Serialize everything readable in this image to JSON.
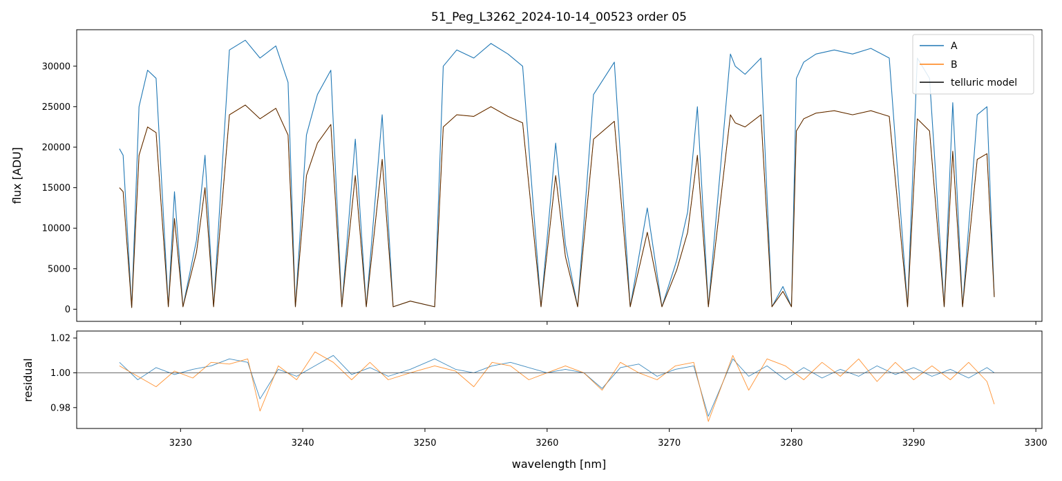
{
  "chart_data": [
    {
      "type": "line",
      "title": "51_Peg_L3262_2024-10-14_00523  order 05",
      "xlabel": "",
      "ylabel": "flux [ADU]",
      "xlim": [
        3221.5,
        3300.5
      ],
      "ylim": [
        -1500,
        34500
      ],
      "xticks": [
        3230,
        3240,
        3250,
        3260,
        3270,
        3280,
        3290,
        3300
      ],
      "yticks": [
        0,
        5000,
        10000,
        15000,
        20000,
        25000,
        30000
      ],
      "xtick_labels_visible": false,
      "grid": false,
      "legend": {
        "placement": "top-right",
        "entries": [
          "A",
          "B",
          "telluric model"
        ]
      },
      "x": [
        3225.0,
        3225.3,
        3226.0,
        3226.6,
        3227.3,
        3228.0,
        3229.0,
        3229.5,
        3230.2,
        3231.3,
        3232.0,
        3232.7,
        3234.0,
        3235.3,
        3236.5,
        3237.8,
        3238.8,
        3239.4,
        3240.3,
        3241.2,
        3242.3,
        3243.2,
        3244.3,
        3245.2,
        3246.5,
        3247.4,
        3248.8,
        3250.8,
        3251.5,
        3252.6,
        3254.0,
        3255.4,
        3256.8,
        3258.0,
        3259.5,
        3260.7,
        3261.5,
        3262.5,
        3263.8,
        3265.5,
        3266.8,
        3268.2,
        3269.4,
        3270.6,
        3271.5,
        3272.3,
        3273.2,
        3275.0,
        3275.4,
        3276.2,
        3277.5,
        3278.4,
        3279.3,
        3280.0,
        3280.4,
        3281.0,
        3282.0,
        3283.5,
        3285.0,
        3286.5,
        3288.0,
        3289.5,
        3290.3,
        3291.3,
        3292.5,
        3293.2,
        3294.0,
        3295.2,
        3296.0,
        3296.6
      ],
      "series": [
        {
          "name": "A",
          "color": "#1f77b4",
          "y": [
            19800,
            19000,
            200,
            25000,
            29500,
            28500,
            300,
            14500,
            300,
            8500,
            19000,
            300,
            32000,
            33200,
            31000,
            32500,
            28000,
            300,
            21500,
            26500,
            29500,
            300,
            21000,
            300,
            24000,
            300,
            1000,
            300,
            30000,
            32000,
            31000,
            32800,
            31500,
            30000,
            300,
            20500,
            8000,
            300,
            26500,
            30500,
            300,
            12500,
            300,
            6000,
            12000,
            25000,
            300,
            31500,
            30000,
            29000,
            31000,
            300,
            2800,
            300,
            28500,
            30500,
            31500,
            32000,
            31500,
            32200,
            31000,
            300,
            31000,
            28500,
            300,
            25500,
            300,
            24000,
            25000,
            1500
          ]
        },
        {
          "name": "B",
          "color": "#ff7f0e",
          "y": [
            15000,
            14500,
            200,
            19000,
            22500,
            21800,
            300,
            11200,
            300,
            7000,
            15000,
            300,
            24000,
            25200,
            23500,
            24800,
            21500,
            300,
            16500,
            20500,
            22800,
            300,
            16500,
            300,
            18500,
            300,
            1000,
            300,
            22500,
            24000,
            23800,
            25000,
            23800,
            23000,
            300,
            16500,
            6500,
            300,
            21000,
            23200,
            300,
            9500,
            300,
            4800,
            9500,
            19000,
            300,
            24000,
            23000,
            22500,
            24000,
            300,
            2200,
            300,
            22000,
            23500,
            24200,
            24500,
            24000,
            24500,
            23800,
            300,
            23500,
            22000,
            300,
            19500,
            300,
            18500,
            19200,
            1500
          ]
        },
        {
          "name": "telluric model",
          "color": "#000000",
          "y": [
            15000,
            14500,
            200,
            19000,
            22500,
            21800,
            300,
            11200,
            300,
            7000,
            15000,
            300,
            24000,
            25200,
            23500,
            24800,
            21500,
            300,
            16500,
            20500,
            22800,
            300,
            16500,
            300,
            18500,
            300,
            1000,
            300,
            22500,
            24000,
            23800,
            25000,
            23800,
            23000,
            300,
            16500,
            6500,
            300,
            21000,
            23200,
            300,
            9500,
            300,
            4800,
            9500,
            19000,
            300,
            24000,
            23000,
            22500,
            24000,
            300,
            2200,
            300,
            22000,
            23500,
            24200,
            24500,
            24000,
            24500,
            23800,
            300,
            23500,
            22000,
            300,
            19500,
            300,
            18500,
            19200,
            1500
          ]
        }
      ]
    },
    {
      "type": "line",
      "title": "",
      "xlabel": "wavelength [nm]",
      "ylabel": "residual",
      "xlim": [
        3221.5,
        3300.5
      ],
      "ylim": [
        0.968,
        1.024
      ],
      "xticks": [
        3230,
        3240,
        3250,
        3260,
        3270,
        3280,
        3290,
        3300
      ],
      "xtick_labels": [
        "3230",
        "3240",
        "3250",
        "3260",
        "3270",
        "3280",
        "3290",
        "3300"
      ],
      "yticks": [
        0.98,
        1.0,
        1.02
      ],
      "ytick_labels": [
        "0.98",
        "1.00",
        "1.02"
      ],
      "reference_line": 1.0,
      "grid": false,
      "x": [
        3225.0,
        3226.5,
        3228.0,
        3229.5,
        3231.0,
        3232.5,
        3234.0,
        3235.5,
        3236.5,
        3238.0,
        3239.5,
        3241.0,
        3242.5,
        3244.0,
        3245.5,
        3247.0,
        3248.8,
        3250.8,
        3252.5,
        3254.0,
        3255.5,
        3257.0,
        3258.5,
        3260.0,
        3261.5,
        3263.0,
        3264.5,
        3266.0,
        3267.5,
        3269.0,
        3270.5,
        3272.0,
        3273.2,
        3275.2,
        3276.5,
        3278.0,
        3279.5,
        3281.0,
        3282.5,
        3284.0,
        3285.5,
        3287.0,
        3288.5,
        3290.0,
        3291.5,
        3293.0,
        3294.5,
        3296.0,
        3296.6
      ],
      "series": [
        {
          "name": "A",
          "color": "#1f77b4",
          "y": [
            1.006,
            0.996,
            1.003,
            0.999,
            1.002,
            1.004,
            1.008,
            1.006,
            0.985,
            1.002,
            0.998,
            1.004,
            1.01,
            0.999,
            1.003,
            0.998,
            1.002,
            1.008,
            1.002,
            1.0,
            1.004,
            1.006,
            1.003,
            1.0,
            1.002,
            1.0,
            0.991,
            1.003,
            1.005,
            0.998,
            1.002,
            1.004,
            0.975,
            1.008,
            0.998,
            1.004,
            0.996,
            1.003,
            0.997,
            1.002,
            0.998,
            1.004,
            0.999,
            1.003,
            0.998,
            1.002,
            0.997,
            1.003,
            1.0
          ]
        },
        {
          "name": "B",
          "color": "#ff7f0e",
          "y": [
            1.004,
            0.998,
            0.992,
            1.001,
            0.997,
            1.006,
            1.005,
            1.008,
            0.978,
            1.004,
            0.996,
            1.012,
            1.006,
            0.996,
            1.006,
            0.996,
            1.0,
            1.004,
            1.001,
            0.992,
            1.006,
            1.004,
            0.996,
            1.0,
            1.004,
            1.0,
            0.99,
            1.006,
            1.0,
            0.996,
            1.004,
            1.006,
            0.972,
            1.01,
            0.99,
            1.008,
            1.004,
            0.996,
            1.006,
            0.998,
            1.008,
            0.995,
            1.006,
            0.996,
            1.004,
            0.996,
            1.006,
            0.995,
            0.982
          ]
        }
      ]
    }
  ]
}
